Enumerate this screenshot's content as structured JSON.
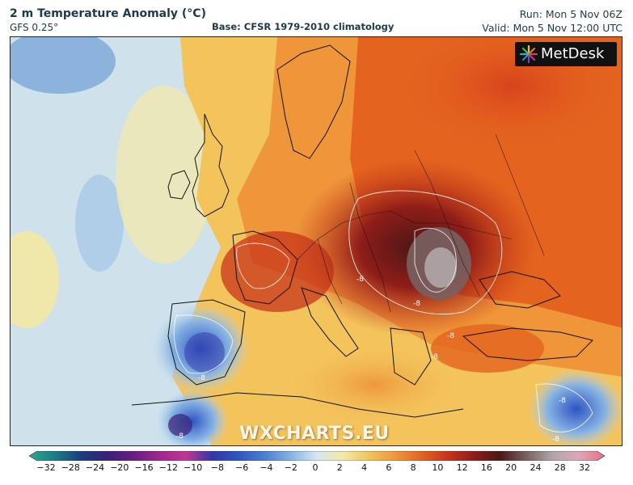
{
  "header": {
    "title": "2 m Temperature Anomaly (°C)",
    "model": "GFS 0.25°",
    "base": "Base: CFSR 1979-2010 climatology",
    "run": "Run: Mon 5 Nov 06Z",
    "valid": "Valid: Mon 5 Nov 12:00 UTC"
  },
  "logo": {
    "text": "MetDesk",
    "icon": "metdesk-star-icon"
  },
  "watermark": "WXCHARTS.EU",
  "colorbar": {
    "ticks": [
      "−32",
      "−28",
      "−24",
      "−20",
      "−16",
      "−12",
      "−10",
      "−8",
      "−6",
      "−4",
      "−2",
      "0",
      "2",
      "4",
      "6",
      "8",
      "10",
      "12",
      "16",
      "20",
      "24",
      "28",
      "32"
    ],
    "colors": [
      "#2fa88a",
      "#1a7b8a",
      "#173e7e",
      "#3a1f79",
      "#6a1c86",
      "#a0268f",
      "#c23596",
      "#3237a8",
      "#2f55c1",
      "#4b7fd3",
      "#86b3e3",
      "#d5e8ef",
      "#f3e9a4",
      "#f3c35c",
      "#ef963a",
      "#e4631f",
      "#c8341a",
      "#8e1d18",
      "#4d1716",
      "#7a6160",
      "#b1a6a8",
      "#dca7b6",
      "#f06d8c"
    ]
  },
  "map_labels": [
    "-8",
    "-8",
    "-8",
    "-8",
    "-8",
    "-8",
    "-8",
    "-8"
  ]
}
